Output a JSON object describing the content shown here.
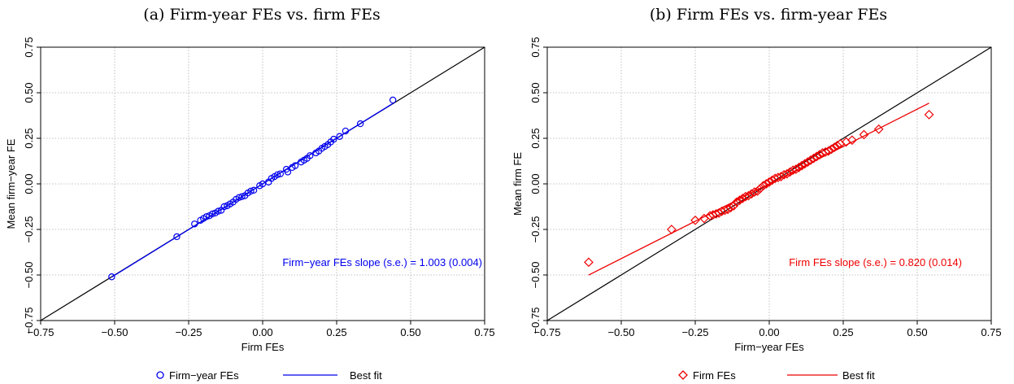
{
  "chart_data": [
    {
      "type": "scatter",
      "title": "(a) Firm-year FEs vs. firm FEs",
      "xlabel": "Firm FEs",
      "ylabel": "Mean firm−year FE",
      "xlim": [
        -0.75,
        0.75
      ],
      "ylim": [
        -0.75,
        0.75
      ],
      "x_ticks": [
        "−0.75",
        "−0.50",
        "−0.25",
        "0.00",
        "0.25",
        "0.50",
        "0.75"
      ],
      "y_ticks": [
        "−0.75",
        "−0.50",
        "−0.25",
        "0.00",
        "0.25",
        "0.50",
        "0.75"
      ],
      "grid": true,
      "legend_position": "bottom",
      "marker": "circle",
      "color": "#0000ee",
      "annotation": "Firm−year FEs slope (s.e.) = 1.003 (0.004)",
      "legend": {
        "points": "Firm−year FEs",
        "fit": "Best fit"
      },
      "fit": {
        "slope": 1.003,
        "intercept": 0.0,
        "x_range": [
          -0.51,
          0.44
        ]
      },
      "points": [
        [
          -0.51,
          -0.51
        ],
        [
          -0.29,
          -0.29
        ],
        [
          -0.23,
          -0.22
        ],
        [
          -0.21,
          -0.2
        ],
        [
          -0.2,
          -0.19
        ],
        [
          -0.19,
          -0.18
        ],
        [
          -0.18,
          -0.175
        ],
        [
          -0.17,
          -0.165
        ],
        [
          -0.16,
          -0.16
        ],
        [
          -0.15,
          -0.15
        ],
        [
          -0.14,
          -0.145
        ],
        [
          -0.13,
          -0.125
        ],
        [
          -0.12,
          -0.12
        ],
        [
          -0.11,
          -0.11
        ],
        [
          -0.1,
          -0.1
        ],
        [
          -0.09,
          -0.085
        ],
        [
          -0.08,
          -0.075
        ],
        [
          -0.07,
          -0.07
        ],
        [
          -0.06,
          -0.065
        ],
        [
          -0.05,
          -0.05
        ],
        [
          -0.04,
          -0.04
        ],
        [
          -0.03,
          -0.035
        ],
        [
          -0.01,
          -0.01
        ],
        [
          0.0,
          0.0
        ],
        [
          0.02,
          0.01
        ],
        [
          0.03,
          0.03
        ],
        [
          0.04,
          0.04
        ],
        [
          0.05,
          0.05
        ],
        [
          0.06,
          0.055
        ],
        [
          0.08,
          0.08
        ],
        [
          0.085,
          0.065
        ],
        [
          0.1,
          0.09
        ],
        [
          0.11,
          0.1
        ],
        [
          0.13,
          0.12
        ],
        [
          0.14,
          0.13
        ],
        [
          0.15,
          0.14
        ],
        [
          0.16,
          0.155
        ],
        [
          0.18,
          0.17
        ],
        [
          0.19,
          0.18
        ],
        [
          0.2,
          0.195
        ],
        [
          0.21,
          0.205
        ],
        [
          0.22,
          0.215
        ],
        [
          0.23,
          0.23
        ],
        [
          0.24,
          0.245
        ],
        [
          0.26,
          0.26
        ],
        [
          0.28,
          0.29
        ],
        [
          0.33,
          0.33
        ],
        [
          0.44,
          0.46
        ]
      ]
    },
    {
      "type": "scatter",
      "title": "(b) Firm FEs vs. firm-year FEs",
      "xlabel": "Firm−year FEs",
      "ylabel": "Mean firm FE",
      "xlim": [
        -0.75,
        0.75
      ],
      "ylim": [
        -0.75,
        0.75
      ],
      "x_ticks": [
        "−0.75",
        "−0.50",
        "−0.25",
        "0.00",
        "0.25",
        "0.50",
        "0.75"
      ],
      "y_ticks": [
        "−0.75",
        "−0.50",
        "−0.25",
        "0.00",
        "0.25",
        "0.50",
        "0.75"
      ],
      "grid": true,
      "legend_position": "bottom",
      "marker": "diamond",
      "color": "#ee0000",
      "annotation": "Firm FEs slope (s.e.) = 0.820 (0.014)",
      "legend": {
        "points": "Firm FEs",
        "fit": "Best fit"
      },
      "fit": {
        "slope": 0.82,
        "intercept": 0.0,
        "x_range": [
          -0.61,
          0.54
        ]
      },
      "points": [
        [
          -0.61,
          -0.43
        ],
        [
          -0.33,
          -0.25
        ],
        [
          -0.25,
          -0.2
        ],
        [
          -0.22,
          -0.19
        ],
        [
          -0.2,
          -0.175
        ],
        [
          -0.19,
          -0.17
        ],
        [
          -0.18,
          -0.165
        ],
        [
          -0.17,
          -0.16
        ],
        [
          -0.16,
          -0.15
        ],
        [
          -0.15,
          -0.145
        ],
        [
          -0.14,
          -0.14
        ],
        [
          -0.13,
          -0.13
        ],
        [
          -0.12,
          -0.12
        ],
        [
          -0.11,
          -0.1
        ],
        [
          -0.1,
          -0.09
        ],
        [
          -0.09,
          -0.08
        ],
        [
          -0.08,
          -0.07
        ],
        [
          -0.07,
          -0.065
        ],
        [
          -0.06,
          -0.055
        ],
        [
          -0.05,
          -0.045
        ],
        [
          -0.04,
          -0.04
        ],
        [
          -0.03,
          -0.025
        ],
        [
          -0.02,
          -0.01
        ],
        [
          -0.01,
          0.0
        ],
        [
          0.0,
          0.01
        ],
        [
          0.01,
          0.02
        ],
        [
          0.02,
          0.03
        ],
        [
          0.03,
          0.035
        ],
        [
          0.04,
          0.04
        ],
        [
          0.05,
          0.05
        ],
        [
          0.06,
          0.055
        ],
        [
          0.07,
          0.065
        ],
        [
          0.08,
          0.075
        ],
        [
          0.09,
          0.08
        ],
        [
          0.1,
          0.09
        ],
        [
          0.11,
          0.1
        ],
        [
          0.12,
          0.11
        ],
        [
          0.13,
          0.12
        ],
        [
          0.14,
          0.13
        ],
        [
          0.15,
          0.14
        ],
        [
          0.16,
          0.15
        ],
        [
          0.17,
          0.16
        ],
        [
          0.18,
          0.17
        ],
        [
          0.19,
          0.175
        ],
        [
          0.2,
          0.18
        ],
        [
          0.21,
          0.19
        ],
        [
          0.22,
          0.2
        ],
        [
          0.23,
          0.21
        ],
        [
          0.24,
          0.22
        ],
        [
          0.26,
          0.23
        ],
        [
          0.28,
          0.24
        ],
        [
          0.32,
          0.27
        ],
        [
          0.37,
          0.3
        ],
        [
          0.54,
          0.38
        ]
      ]
    }
  ]
}
